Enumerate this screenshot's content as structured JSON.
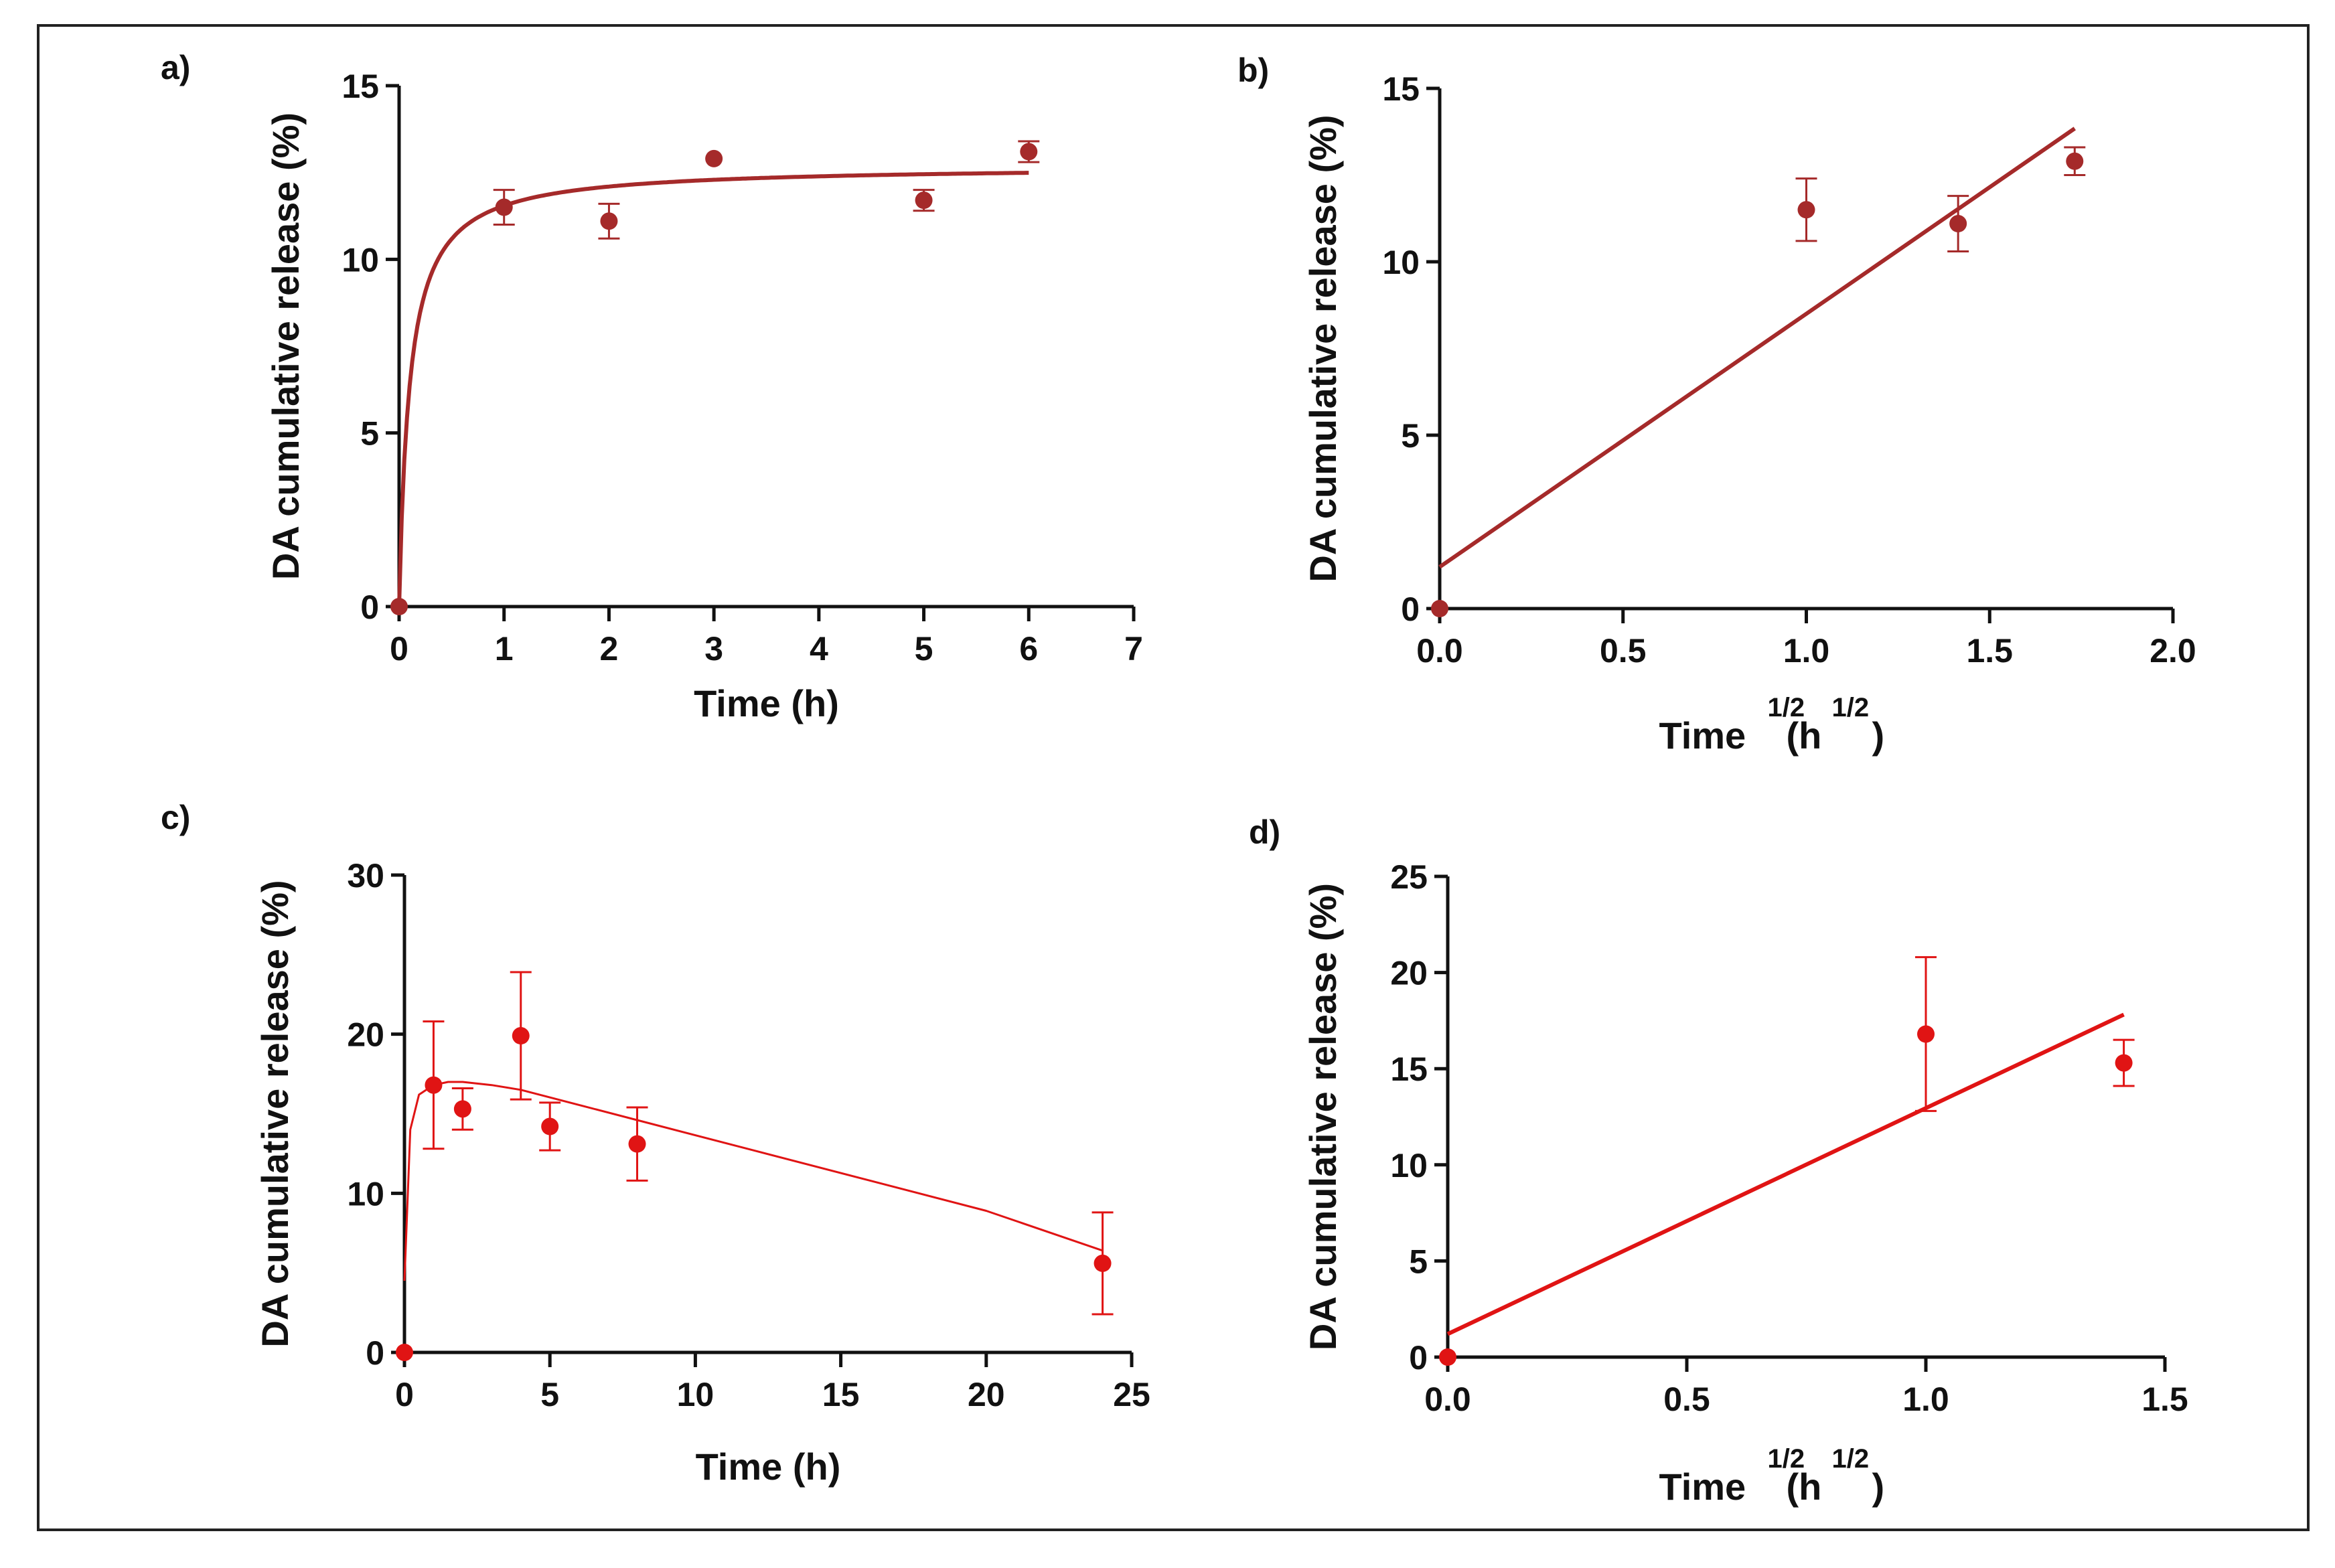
{
  "chart_data": [
    {
      "type": "scatter",
      "label": "a)",
      "xlabel": "Time (h)",
      "ylabel": "DA cumulative release (%)",
      "xlim": [
        0,
        7
      ],
      "ylim": [
        0,
        15
      ],
      "xticks": [
        "0",
        "1",
        "2",
        "3",
        "4",
        "5",
        "6",
        "7"
      ],
      "yticks": [
        "0",
        "5",
        "10",
        "15"
      ],
      "color": "#a52a2a",
      "points": [
        {
          "x": 0,
          "y": 0,
          "err": 0
        },
        {
          "x": 1,
          "y": 11.5,
          "err": 0.5
        },
        {
          "x": 2,
          "y": 11.1,
          "err": 0.5
        },
        {
          "x": 3,
          "y": 12.9,
          "err": 0
        },
        {
          "x": 5,
          "y": 11.7,
          "err": 0.3
        },
        {
          "x": 6,
          "y": 13.1,
          "err": 0.3
        }
      ],
      "fit": {
        "type": "saturation",
        "ymax": 12.7,
        "k": 0.1,
        "xmax": 6
      }
    },
    {
      "type": "scatter",
      "label": "b)",
      "xlabel_main": "Time",
      "xlabel_sup": "1/2",
      "xlabel_unit_open": "(h",
      "xlabel_unit_sup": "1/2",
      "xlabel_unit_close": ")",
      "ylabel": "DA cumulative release (%)",
      "xlim": [
        0,
        2
      ],
      "ylim": [
        0,
        15
      ],
      "xticks": [
        "0.0",
        "0.5",
        "1.0",
        "1.5",
        "2.0"
      ],
      "yticks": [
        "0",
        "5",
        "10",
        "15"
      ],
      "color": "#a52a2a",
      "points": [
        {
          "x": 0,
          "y": 0,
          "err": 0
        },
        {
          "x": 1.0,
          "y": 11.5,
          "err": 0.9
        },
        {
          "x": 1.414,
          "y": 11.1,
          "err": 0.8
        },
        {
          "x": 1.732,
          "y": 12.9,
          "err": 0.4
        }
      ],
      "fit": {
        "type": "linear",
        "intercept": 1.2,
        "slope": 7.3,
        "xmin": 0,
        "xmax": 1.732
      }
    },
    {
      "type": "scatter",
      "label": "c)",
      "xlabel": "Time (h)",
      "ylabel": "DA cumulative release (%)",
      "xlim": [
        0,
        25
      ],
      "ylim": [
        0,
        30
      ],
      "xticks": [
        "0",
        "5",
        "10",
        "15",
        "20",
        "25"
      ],
      "yticks": [
        "0",
        "10",
        "20",
        "30"
      ],
      "color": "#e01414",
      "points": [
        {
          "x": 0,
          "y": 0,
          "err": 0
        },
        {
          "x": 1,
          "y": 16.8,
          "err": 4.0
        },
        {
          "x": 2,
          "y": 15.3,
          "err": 1.3
        },
        {
          "x": 4,
          "y": 19.9,
          "err": 4.0
        },
        {
          "x": 5,
          "y": 14.2,
          "err": 1.5
        },
        {
          "x": 8,
          "y": 13.1,
          "err": 2.3
        },
        {
          "x": 24,
          "y": 5.6,
          "err": 3.2
        }
      ],
      "fit": {
        "type": "rise-decay",
        "points": [
          [
            0,
            4.5
          ],
          [
            0.2,
            14.0
          ],
          [
            0.5,
            16.2
          ],
          [
            1,
            16.8
          ],
          [
            1.5,
            17.0
          ],
          [
            2,
            17.0
          ],
          [
            3,
            16.8
          ],
          [
            4,
            16.5
          ],
          [
            8,
            14.6
          ],
          [
            12,
            12.7
          ],
          [
            16,
            10.8
          ],
          [
            20,
            8.9
          ],
          [
            24,
            6.4
          ]
        ]
      }
    },
    {
      "type": "scatter",
      "label": "d)",
      "xlabel_main": "Time",
      "xlabel_sup": "1/2",
      "xlabel_unit_open": "(h",
      "xlabel_unit_sup": "1/2",
      "xlabel_unit_close": ")",
      "ylabel": "DA cumulative release (%)",
      "xlim": [
        0,
        1.5
      ],
      "ylim": [
        0,
        25
      ],
      "xticks": [
        "0.0",
        "0.5",
        "1.0",
        "1.5"
      ],
      "yticks": [
        "0",
        "5",
        "10",
        "15",
        "20",
        "25"
      ],
      "color": "#e01414",
      "points": [
        {
          "x": 0,
          "y": 0,
          "err": 0
        },
        {
          "x": 1.0,
          "y": 16.8,
          "err": 4.0
        },
        {
          "x": 1.414,
          "y": 15.3,
          "err": 1.2
        }
      ],
      "fit": {
        "type": "linear",
        "intercept": 1.2,
        "slope": 11.75,
        "xmin": 0,
        "xmax": 1.414
      }
    }
  ]
}
